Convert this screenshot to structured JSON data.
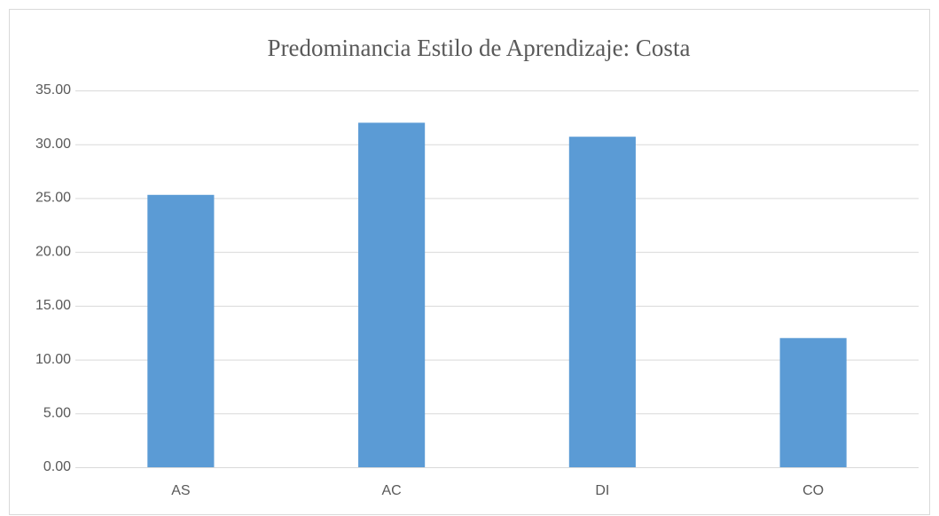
{
  "chart_data": {
    "type": "bar",
    "title": "Predominancia Estilo de Aprendizaje: Costa",
    "categories": [
      "AS",
      "AC",
      "DI",
      "CO"
    ],
    "values": [
      25.3,
      32.0,
      30.7,
      12.0
    ],
    "color": "#5b9bd5",
    "ylim": [
      0,
      35
    ],
    "yticks": [
      {
        "value": 0,
        "label": "0.00"
      },
      {
        "value": 5,
        "label": "5.00"
      },
      {
        "value": 10,
        "label": "10.00"
      },
      {
        "value": 15,
        "label": "15.00"
      },
      {
        "value": 20,
        "label": "20.00"
      },
      {
        "value": 25,
        "label": "25.00"
      },
      {
        "value": 30,
        "label": "30.00"
      },
      {
        "value": 35,
        "label": "35.00"
      }
    ],
    "grid": true
  }
}
